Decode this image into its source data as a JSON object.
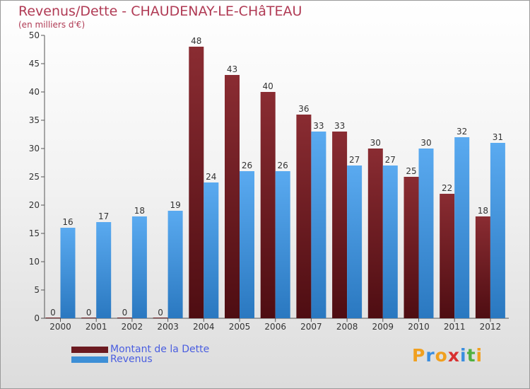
{
  "header": {
    "title": "Revenus/Dette - CHAUDENAY-LE-CHâTEAU",
    "subtitle": "(en milliers d'€)"
  },
  "colors": {
    "dette": "#6b1a20",
    "revenus": "#3d8fd6",
    "axis_text": "#333333",
    "title": "#b03a54"
  },
  "chart_data": {
    "type": "bar",
    "title": "Revenus/Dette - CHAUDENAY-LE-CHâTEAU",
    "subtitle": "(en milliers d'€)",
    "categories": [
      "2000",
      "2001",
      "2002",
      "2003",
      "2004",
      "2005",
      "2006",
      "2007",
      "2008",
      "2009",
      "2010",
      "2011",
      "2012"
    ],
    "series": [
      {
        "name": "Montant de la Dette",
        "values": [
          0,
          0,
          0,
          0,
          48,
          43,
          40,
          36,
          33,
          30,
          25,
          22,
          18
        ]
      },
      {
        "name": "Revenus",
        "values": [
          16,
          17,
          18,
          19,
          24,
          26,
          26,
          33,
          27,
          27,
          30,
          32,
          31
        ]
      }
    ],
    "ylim": [
      0,
      50
    ],
    "yticks": [
      0,
      5,
      10,
      15,
      20,
      25,
      30,
      35,
      40,
      45,
      50
    ],
    "grid": false,
    "legend": "bottom-left"
  },
  "legend": {
    "items": [
      {
        "label": "Montant de la Dette",
        "color": "#6b1a20"
      },
      {
        "label": "Revenus",
        "color": "#3d8fd6"
      }
    ]
  },
  "logo": {
    "letters": [
      "P",
      "r",
      "o",
      "x",
      "i",
      "t",
      "i"
    ],
    "colors": [
      "#f0a020",
      "#3a8ee0",
      "#f0a020",
      "#d83030",
      "#3a8ee0",
      "#50b040",
      "#f0a020"
    ]
  }
}
